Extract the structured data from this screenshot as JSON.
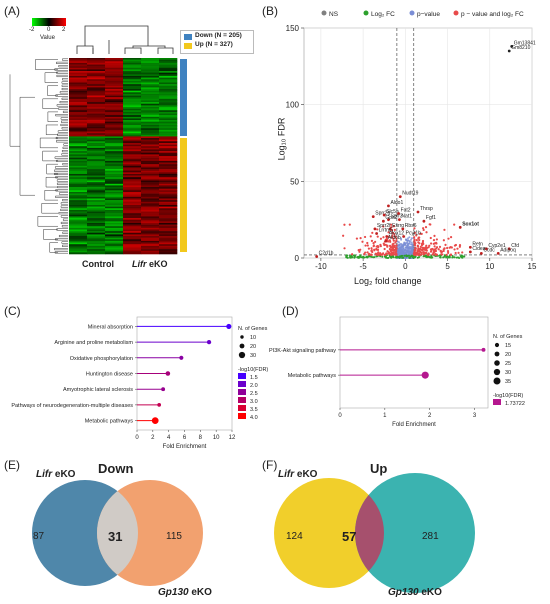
{
  "panels": {
    "A": "(A)",
    "B": "(B)",
    "C": "(C)",
    "D": "(D)",
    "E": "(E)",
    "F": "(F)"
  },
  "panelA": {
    "color_key": {
      "ticks": [
        "-2",
        "0",
        "2"
      ],
      "label": "Value",
      "colors": [
        "#00ff00",
        "#000000",
        "#ff0000"
      ]
    },
    "legend": [
      {
        "label": "Down (N = 205)",
        "color": "#3f82c0"
      },
      {
        "label": "Up (N = 327)",
        "color": "#f2c81d"
      }
    ],
    "groups": {
      "control": "Control",
      "lifr": "Lifr",
      "eko": "eKO"
    }
  },
  "chart_data": [
    {
      "type": "scatter",
      "panel": "B",
      "legend": [
        "NS",
        "Log₂ FC",
        "p−value",
        "p − value and log₂ FC"
      ],
      "legend_colors": [
        "#808080",
        "#2ca02c",
        "#7b8ed6",
        "#e84a4a"
      ],
      "xlabel": "Log₂ fold change",
      "ylabel": "Log₁₀ FDR",
      "xlim": [
        -12,
        15
      ],
      "ylim": [
        0,
        150
      ],
      "xticks": [
        -10,
        -5,
        0,
        5,
        10,
        15
      ],
      "yticks": [
        0,
        50,
        100,
        150
      ],
      "cutoffs": {
        "fc": [
          -1,
          1
        ],
        "fdr": 2
      },
      "labeled_points": [
        {
          "label": "Gm13841",
          "x": 12.6,
          "y": 138
        },
        {
          "label": "Gm8210",
          "x": 12.3,
          "y": 135
        },
        {
          "label": "Nudt19",
          "x": -0.6,
          "y": 40
        },
        {
          "label": "Aldo1",
          "x": -2.0,
          "y": 34
        },
        {
          "label": "Thrsp",
          "x": 1.5,
          "y": 30
        },
        {
          "label": "Sprr2g",
          "x": -3.8,
          "y": 27
        },
        {
          "label": "Slc5a",
          "x": -2.5,
          "y": 28
        },
        {
          "label": "Sprr3",
          "x": -2.0,
          "y": 25
        },
        {
          "label": "Fat2",
          "x": -0.8,
          "y": 29
        },
        {
          "label": "Gpx2",
          "x": -2.6,
          "y": 24
        },
        {
          "label": "Nat1",
          "x": -0.7,
          "y": 25
        },
        {
          "label": "Fgf1",
          "x": 2.2,
          "y": 24
        },
        {
          "label": "Sprr2f",
          "x": -3.6,
          "y": 19
        },
        {
          "label": "Esrrg",
          "x": -1.8,
          "y": 19
        },
        {
          "label": "Rbs6",
          "x": -0.3,
          "y": 19
        },
        {
          "label": "Lrrtm5",
          "x": -3.4,
          "y": 16
        },
        {
          "label": "Alox12",
          "x": -2.2,
          "y": 14
        },
        {
          "label": "Aldob",
          "x": -2.3,
          "y": 11
        },
        {
          "label": "Pcyt1b",
          "x": -0.2,
          "y": 14
        },
        {
          "label": "Sox1ot",
          "x": 6.5,
          "y": 20
        },
        {
          "label": "Retn",
          "x": 7.7,
          "y": 7
        },
        {
          "label": "Cyp2e1",
          "x": 9.6,
          "y": 6
        },
        {
          "label": "Cfd",
          "x": 12.3,
          "y": 6
        },
        {
          "label": "Adipoq",
          "x": 11.0,
          "y": 3
        },
        {
          "label": "Ccdc",
          "x": 9.0,
          "y": 3
        },
        {
          "label": "Cidea",
          "x": 7.7,
          "y": 4
        },
        {
          "label": "C2d1b",
          "x": -10.5,
          "y": 1
        }
      ]
    },
    {
      "type": "bar",
      "panel": "C",
      "orientation": "horizontal-lollipop",
      "categories": [
        "Mineral absorption",
        "Arginine and proline metabolism",
        "Oxidative phosphorylation",
        "Huntington disease",
        "Amyotrophic lateral sclerosis",
        "Pathways of neurodegeneration-multiple diseases",
        "Metabolic pathways"
      ],
      "values": [
        11.6,
        9.1,
        5.6,
        3.9,
        3.3,
        2.8,
        2.3
      ],
      "n_genes": [
        22,
        16,
        15,
        18,
        13,
        12,
        33
      ],
      "neglog10_fdr": [
        1.5,
        2.0,
        2.4,
        2.8,
        2.6,
        3.2,
        4.0
      ],
      "xlabel": "Fold Enrichment",
      "xticks": [
        0,
        2,
        4,
        6,
        8,
        10,
        12
      ],
      "xlim": [
        0,
        12
      ],
      "size_legend_title": "N. of Genes",
      "size_legend": [
        "10",
        "20",
        "30"
      ],
      "color_legend_title": "-log10(FDR)",
      "color_legend": [
        "1.5",
        "2.0",
        "2.5",
        "3.0",
        "3.5",
        "4.0"
      ]
    },
    {
      "type": "bar",
      "panel": "D",
      "orientation": "horizontal-lollipop",
      "categories": [
        "PI3K-Akt signaling pathway",
        "Metabolic pathways"
      ],
      "values": [
        3.2,
        1.9
      ],
      "n_genes": [
        13,
        36
      ],
      "neglog10_fdr": [
        1.73722,
        1.73722
      ],
      "xlabel": "Fold Enrichment",
      "xticks": [
        0,
        1,
        2,
        3
      ],
      "xlim": [
        0,
        3.3
      ],
      "size_legend_title": "N. of Genes",
      "size_legend": [
        "15",
        "20",
        "25",
        "30",
        "35"
      ],
      "color_legend_title": "-log10(FDR)",
      "color_legend": [
        "1.73722"
      ]
    }
  ],
  "venns": {
    "E": {
      "title": "Down",
      "left_name_italic": "Lifr",
      "left_name_rest": " eKO",
      "right_name_italic": "Gp130",
      "right_name_rest": " eKO",
      "left_only": "87",
      "overlap": "31",
      "right_only": "115",
      "left_color": "#4f87aa",
      "right_color": "#f2a16f",
      "overlap_color": "#d0cbc6"
    },
    "F": {
      "title": "Up",
      "left_name_italic": "Lifr",
      "left_name_rest": " eKO",
      "right_name_italic": "Gp130",
      "right_name_rest": " eKO",
      "left_only": "124",
      "overlap": "57",
      "right_only": "281",
      "left_color": "#f1cf2b",
      "right_color": "#3bb3b0",
      "overlap_color": "#a6506d"
    }
  }
}
